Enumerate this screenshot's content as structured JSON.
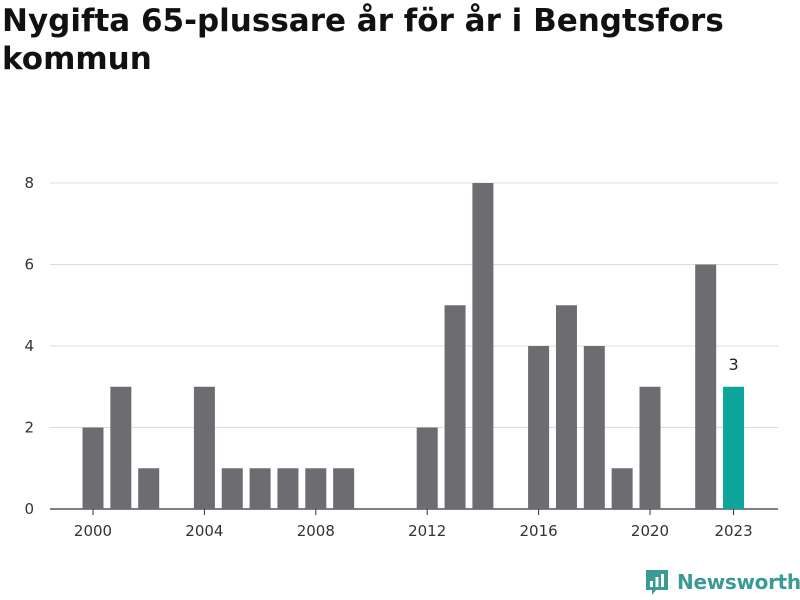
{
  "title": "Nygifta 65-plussare år för år i Bengtsfors kommun",
  "brand": {
    "name": "Newsworthy",
    "icon": "newsworthy-logo-icon",
    "color": "#3a9a94"
  },
  "colors": {
    "bar": "#6d6c71",
    "highlight": "#0ea59a",
    "grid": "#dcdcdc",
    "axis": "#333333"
  },
  "chart_data": {
    "type": "bar",
    "title": "Nygifta 65-plussare år för år i Bengtsfors kommun",
    "xlabel": "",
    "ylabel": "",
    "x": [
      2000,
      2001,
      2002,
      2003,
      2004,
      2005,
      2006,
      2007,
      2008,
      2009,
      2010,
      2011,
      2012,
      2013,
      2014,
      2015,
      2016,
      2017,
      2018,
      2019,
      2020,
      2021,
      2022,
      2023
    ],
    "values": [
      2,
      3,
      1,
      0,
      3,
      1,
      1,
      1,
      1,
      1,
      0,
      0,
      2,
      5,
      8,
      0,
      4,
      5,
      4,
      1,
      3,
      0,
      6,
      3
    ],
    "xticks": [
      "2000",
      "2004",
      "2008",
      "2012",
      "2016",
      "2020",
      "2023"
    ],
    "yticks": [
      0,
      2,
      4,
      6,
      8
    ],
    "ylim": [
      0,
      8
    ],
    "highlight": {
      "x": 2023,
      "label": "3"
    },
    "grid": true,
    "legend": "none"
  }
}
